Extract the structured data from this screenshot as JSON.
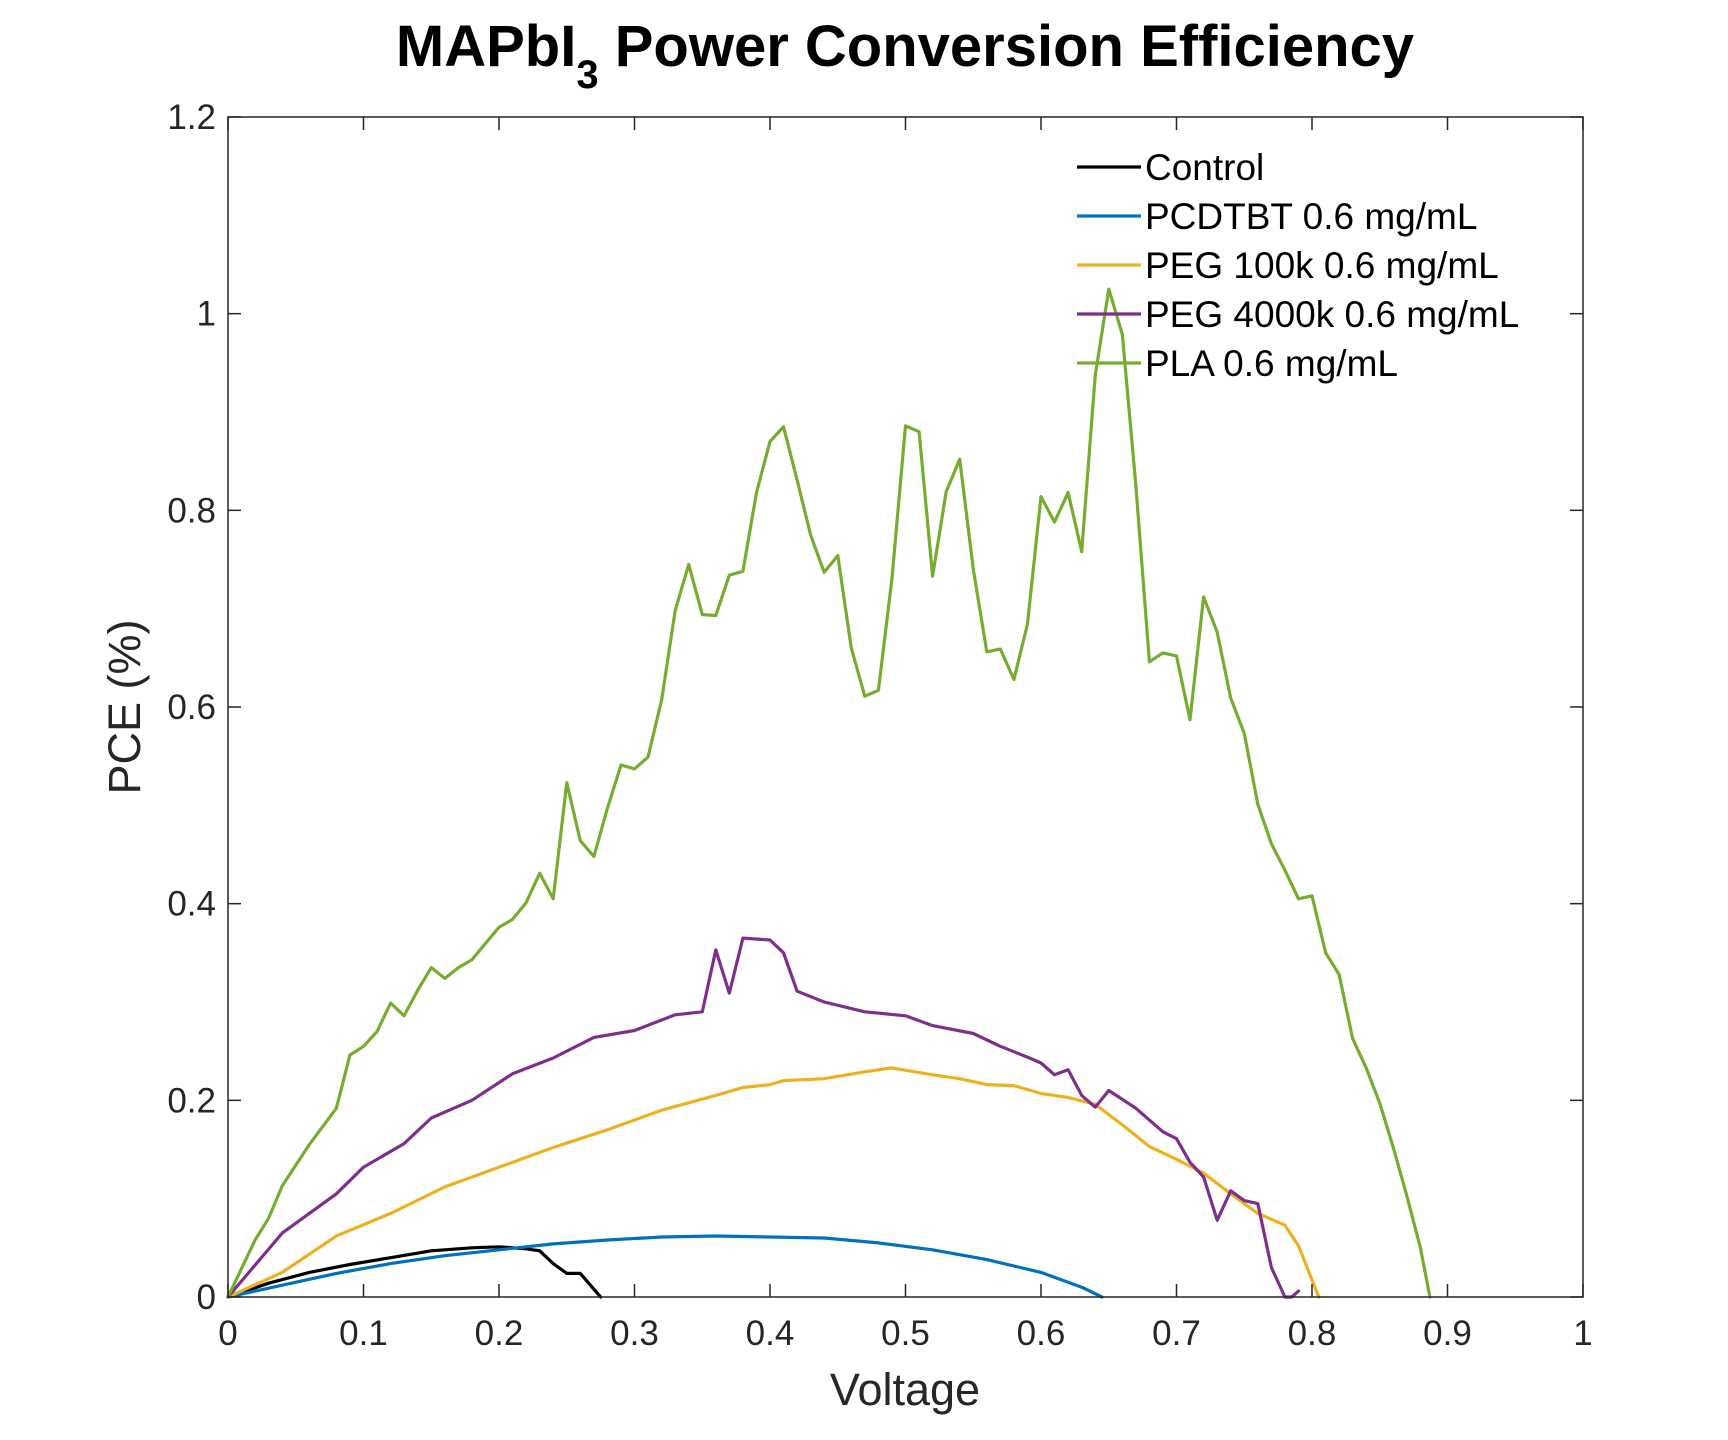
{
  "chart_data": {
    "type": "line",
    "title": "MAPbI",
    "title_subscript": "3",
    "title_rest": " Power Conversion Efficiency",
    "xlabel": "Voltage",
    "ylabel": "PCE (%)",
    "xlim": [
      0,
      1
    ],
    "ylim": [
      0,
      1.2
    ],
    "x_ticks": [
      "0",
      "0.1",
      "0.2",
      "0.3",
      "0.4",
      "0.5",
      "0.6",
      "0.7",
      "0.8",
      "0.9",
      "1"
    ],
    "y_ticks": [
      "0",
      "0.2",
      "0.4",
      "0.6",
      "0.8",
      "1",
      "1.2"
    ],
    "grid": false,
    "legend_position": "top-right",
    "series": [
      {
        "name": "Control",
        "color": "#000000",
        "points": [
          [
            0,
            0
          ],
          [
            0.03,
            0.014
          ],
          [
            0.06,
            0.025
          ],
          [
            0.09,
            0.033
          ],
          [
            0.12,
            0.04
          ],
          [
            0.15,
            0.047
          ],
          [
            0.18,
            0.05
          ],
          [
            0.2,
            0.051
          ],
          [
            0.22,
            0.049
          ],
          [
            0.23,
            0.047
          ],
          [
            0.24,
            0.034
          ],
          [
            0.25,
            0.024
          ],
          [
            0.26,
            0.024
          ],
          [
            0.275,
            0
          ]
        ]
      },
      {
        "name": "PCDTBT 0.6 mg/mL",
        "color": "#0072BD",
        "points": [
          [
            0,
            0
          ],
          [
            0.04,
            0.012
          ],
          [
            0.08,
            0.024
          ],
          [
            0.12,
            0.034
          ],
          [
            0.16,
            0.042
          ],
          [
            0.2,
            0.048
          ],
          [
            0.24,
            0.054
          ],
          [
            0.28,
            0.058
          ],
          [
            0.32,
            0.061
          ],
          [
            0.36,
            0.062
          ],
          [
            0.4,
            0.061
          ],
          [
            0.44,
            0.06
          ],
          [
            0.48,
            0.055
          ],
          [
            0.52,
            0.048
          ],
          [
            0.56,
            0.038
          ],
          [
            0.6,
            0.025
          ],
          [
            0.63,
            0.01
          ],
          [
            0.645,
            0
          ]
        ]
      },
      {
        "name": "PEG 100k 0.6 mg/mL",
        "color": "#EDB120",
        "points": [
          [
            0,
            0
          ],
          [
            0.04,
            0.025
          ],
          [
            0.08,
            0.062
          ],
          [
            0.12,
            0.085
          ],
          [
            0.16,
            0.112
          ],
          [
            0.2,
            0.132
          ],
          [
            0.24,
            0.152
          ],
          [
            0.28,
            0.17
          ],
          [
            0.32,
            0.19
          ],
          [
            0.36,
            0.205
          ],
          [
            0.38,
            0.213
          ],
          [
            0.4,
            0.216
          ],
          [
            0.41,
            0.22
          ],
          [
            0.44,
            0.222
          ],
          [
            0.47,
            0.229
          ],
          [
            0.49,
            0.233
          ],
          [
            0.52,
            0.226
          ],
          [
            0.54,
            0.222
          ],
          [
            0.56,
            0.216
          ],
          [
            0.58,
            0.215
          ],
          [
            0.6,
            0.207
          ],
          [
            0.62,
            0.203
          ],
          [
            0.64,
            0.196
          ],
          [
            0.66,
            0.175
          ],
          [
            0.68,
            0.153
          ],
          [
            0.7,
            0.14
          ],
          [
            0.72,
            0.126
          ],
          [
            0.74,
            0.105
          ],
          [
            0.76,
            0.085
          ],
          [
            0.78,
            0.073
          ],
          [
            0.79,
            0.052
          ],
          [
            0.805,
            0
          ]
        ]
      },
      {
        "name": "PEG 4000k 0.6 mg/mL",
        "color": "#7E2F8E",
        "points": [
          [
            0,
            0
          ],
          [
            0.04,
            0.065
          ],
          [
            0.08,
            0.105
          ],
          [
            0.1,
            0.132
          ],
          [
            0.13,
            0.156
          ],
          [
            0.15,
            0.182
          ],
          [
            0.18,
            0.2
          ],
          [
            0.21,
            0.227
          ],
          [
            0.24,
            0.243
          ],
          [
            0.27,
            0.264
          ],
          [
            0.3,
            0.271
          ],
          [
            0.33,
            0.287
          ],
          [
            0.35,
            0.29
          ],
          [
            0.36,
            0.353
          ],
          [
            0.37,
            0.309
          ],
          [
            0.38,
            0.365
          ],
          [
            0.4,
            0.363
          ],
          [
            0.41,
            0.35
          ],
          [
            0.42,
            0.311
          ],
          [
            0.44,
            0.3
          ],
          [
            0.47,
            0.29
          ],
          [
            0.5,
            0.286
          ],
          [
            0.52,
            0.276
          ],
          [
            0.55,
            0.268
          ],
          [
            0.57,
            0.255
          ],
          [
            0.59,
            0.244
          ],
          [
            0.6,
            0.238
          ],
          [
            0.61,
            0.226
          ],
          [
            0.62,
            0.231
          ],
          [
            0.63,
            0.205
          ],
          [
            0.64,
            0.193
          ],
          [
            0.65,
            0.21
          ],
          [
            0.67,
            0.192
          ],
          [
            0.69,
            0.168
          ],
          [
            0.7,
            0.161
          ],
          [
            0.71,
            0.137
          ],
          [
            0.72,
            0.122
          ],
          [
            0.73,
            0.078
          ],
          [
            0.74,
            0.108
          ],
          [
            0.75,
            0.098
          ],
          [
            0.76,
            0.095
          ],
          [
            0.77,
            0.03
          ],
          [
            0.78,
            0
          ],
          [
            0.785,
            0
          ],
          [
            0.79,
            0.006
          ]
        ]
      },
      {
        "name": "PLA 0.6 mg/mL",
        "color": "#77AC30",
        "points": [
          [
            0,
            0
          ],
          [
            0.02,
            0.058
          ],
          [
            0.03,
            0.08
          ],
          [
            0.04,
            0.113
          ],
          [
            0.06,
            0.155
          ],
          [
            0.08,
            0.192
          ],
          [
            0.09,
            0.246
          ],
          [
            0.1,
            0.255
          ],
          [
            0.11,
            0.27
          ],
          [
            0.12,
            0.299
          ],
          [
            0.13,
            0.286
          ],
          [
            0.14,
            0.312
          ],
          [
            0.15,
            0.335
          ],
          [
            0.16,
            0.324
          ],
          [
            0.17,
            0.335
          ],
          [
            0.18,
            0.343
          ],
          [
            0.2,
            0.376
          ],
          [
            0.21,
            0.384
          ],
          [
            0.22,
            0.401
          ],
          [
            0.23,
            0.431
          ],
          [
            0.24,
            0.405
          ],
          [
            0.25,
            0.523
          ],
          [
            0.26,
            0.464
          ],
          [
            0.27,
            0.448
          ],
          [
            0.28,
            0.497
          ],
          [
            0.29,
            0.541
          ],
          [
            0.3,
            0.537
          ],
          [
            0.31,
            0.549
          ],
          [
            0.32,
            0.607
          ],
          [
            0.33,
            0.698
          ],
          [
            0.34,
            0.745
          ],
          [
            0.35,
            0.694
          ],
          [
            0.36,
            0.693
          ],
          [
            0.37,
            0.734
          ],
          [
            0.38,
            0.738
          ],
          [
            0.39,
            0.818
          ],
          [
            0.4,
            0.87
          ],
          [
            0.41,
            0.885
          ],
          [
            0.42,
            0.831
          ],
          [
            0.43,
            0.775
          ],
          [
            0.44,
            0.737
          ],
          [
            0.45,
            0.754
          ],
          [
            0.46,
            0.66
          ],
          [
            0.47,
            0.611
          ],
          [
            0.48,
            0.617
          ],
          [
            0.49,
            0.73
          ],
          [
            0.5,
            0.886
          ],
          [
            0.51,
            0.88
          ],
          [
            0.52,
            0.733
          ],
          [
            0.53,
            0.819
          ],
          [
            0.54,
            0.852
          ],
          [
            0.55,
            0.74
          ],
          [
            0.56,
            0.656
          ],
          [
            0.57,
            0.659
          ],
          [
            0.58,
            0.628
          ],
          [
            0.59,
            0.684
          ],
          [
            0.6,
            0.814
          ],
          [
            0.61,
            0.788
          ],
          [
            0.62,
            0.818
          ],
          [
            0.63,
            0.758
          ],
          [
            0.64,
            0.937
          ],
          [
            0.65,
            1.025
          ],
          [
            0.66,
            0.979
          ],
          [
            0.67,
            0.826
          ],
          [
            0.68,
            0.646
          ],
          [
            0.69,
            0.655
          ],
          [
            0.7,
            0.652
          ],
          [
            0.71,
            0.587
          ],
          [
            0.72,
            0.712
          ],
          [
            0.73,
            0.676
          ],
          [
            0.74,
            0.609
          ],
          [
            0.75,
            0.573
          ],
          [
            0.76,
            0.501
          ],
          [
            0.77,
            0.461
          ],
          [
            0.78,
            0.434
          ],
          [
            0.79,
            0.405
          ],
          [
            0.8,
            0.408
          ],
          [
            0.81,
            0.35
          ],
          [
            0.82,
            0.328
          ],
          [
            0.83,
            0.263
          ],
          [
            0.84,
            0.233
          ],
          [
            0.85,
            0.197
          ],
          [
            0.86,
            0.152
          ],
          [
            0.87,
            0.103
          ],
          [
            0.88,
            0.05
          ],
          [
            0.887,
            0
          ]
        ]
      }
    ]
  }
}
